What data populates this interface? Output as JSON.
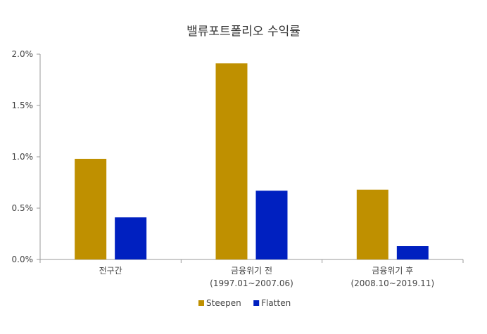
{
  "chart_data": {
    "type": "bar",
    "title": "밸류포트폴리오 수익률",
    "categories": [
      [
        "전구간"
      ],
      [
        "금융위기 전",
        "(1997.01~2007.06)"
      ],
      [
        "금융위기 후",
        "(2008.10~2019.11)"
      ]
    ],
    "series": [
      {
        "name": "Steepen",
        "color": "#bf9000",
        "values": [
          0.98,
          1.91,
          0.68
        ]
      },
      {
        "name": "Flatten",
        "color": "#0020c0",
        "values": [
          0.41,
          0.67,
          0.13
        ]
      }
    ],
    "ylim": [
      0,
      2.0
    ],
    "yticks": [
      "0.0%",
      "0.5%",
      "1.0%",
      "1.5%",
      "2.0%"
    ],
    "ytick_values": [
      0,
      0.5,
      1.0,
      1.5,
      2.0
    ],
    "legend_position": "bottom",
    "grid": false
  }
}
